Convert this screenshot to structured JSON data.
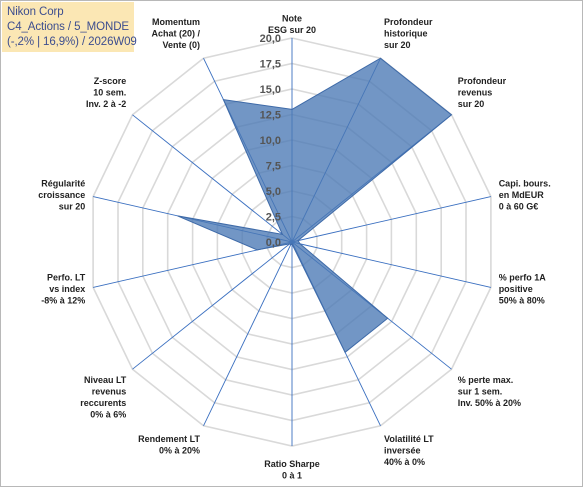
{
  "chart_title": {
    "line1": "Nikon Corp",
    "line2": "C4_Actions / 5_MONDE",
    "line3": "(-,2% | 16,9%) / 2026W09"
  },
  "chart_data": {
    "type": "radar",
    "rlim": [
      0,
      20
    ],
    "ticks": [
      "0,0",
      "2,5",
      "5,0",
      "7,5",
      "10,0",
      "12,5",
      "15,0",
      "17,5",
      "20,0"
    ],
    "tick_values": [
      0,
      2.5,
      5,
      7.5,
      10,
      12.5,
      15,
      17.5,
      20
    ],
    "grid": true,
    "series_color": "#4a78b5",
    "axes": [
      {
        "label": [
          "Note",
          "ESG sur 20"
        ],
        "value": 13
      },
      {
        "label": [
          "Profondeur",
          "historique",
          "sur 20"
        ],
        "value": 20
      },
      {
        "label": [
          "Profondeur",
          "revenus",
          "sur 20"
        ],
        "value": 20
      },
      {
        "label": [
          "Capi. bours.",
          "en MdEUR",
          "0 à 60 G€"
        ],
        "value": 0.6
      },
      {
        "label": [
          "% perfo 1A",
          "positive",
          "50% à 80%"
        ],
        "value": 0.8
      },
      {
        "label": [
          "% perte max.",
          "sur 1 sem.",
          "Inv. 50% à 20%"
        ],
        "value": 12
      },
      {
        "label": [
          "Volatilité LT",
          "inversée",
          "40% à 0%"
        ],
        "value": 12
      },
      {
        "label": [
          "Ratio Sharpe",
          "0 à 1"
        ],
        "value": 0.2
      },
      {
        "label": [
          "Rendement LT",
          "0% à 20%"
        ],
        "value": 0.3
      },
      {
        "label": [
          "Niveau LT",
          "revenus",
          "reccurents",
          "0% à 6%"
        ],
        "value": 0.3
      },
      {
        "label": [
          "Perfo. LT",
          "vs index",
          "-8% à 12%"
        ],
        "value": 3.5
      },
      {
        "label": [
          "Régularité",
          "croissance",
          "sur 20"
        ],
        "value": 11.5
      },
      {
        "label": [
          "Z-score",
          "10 sem.",
          "Inv. 2 à -2"
        ],
        "value": 1.2
      },
      {
        "label": [
          "Momentum",
          "Achat (20) /",
          "Vente (0)"
        ],
        "value": 15.5
      }
    ]
  }
}
